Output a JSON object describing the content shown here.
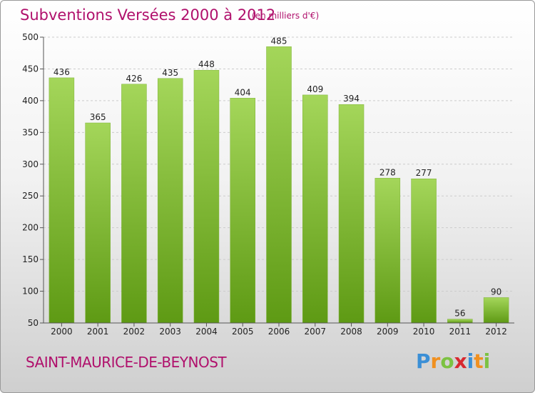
{
  "header": {
    "title": "Subventions Versées 2000 à 2012",
    "unit": "(en milliers d'€)"
  },
  "footer": {
    "commune": "SAINT-MAURICE-DE-BEYNOST"
  },
  "logo": {
    "letters": [
      "P",
      "r",
      "o",
      "x",
      "i",
      "t",
      "i"
    ],
    "colors": [
      "#3b8fd6",
      "#f09020",
      "#7cc242",
      "#d8282f",
      "#3b8fd6",
      "#f09020",
      "#7cc242"
    ]
  },
  "colors": {
    "bar_top": "#a4d65a",
    "bar_bottom": "#5e9a14",
    "title": "#b0106c"
  },
  "chart_data": {
    "type": "bar",
    "categories": [
      "2000",
      "2001",
      "2002",
      "2003",
      "2004",
      "2005",
      "2006",
      "2007",
      "2008",
      "2009",
      "2010",
      "2011",
      "2012"
    ],
    "values": [
      436,
      365,
      426,
      435,
      448,
      404,
      485,
      409,
      394,
      278,
      277,
      56,
      90
    ],
    "title": "Subventions Versées 2000 à 2012",
    "ylim": [
      50,
      500
    ],
    "yticks": [
      50,
      100,
      150,
      200,
      250,
      300,
      350,
      400,
      450,
      500
    ],
    "grid": true
  }
}
